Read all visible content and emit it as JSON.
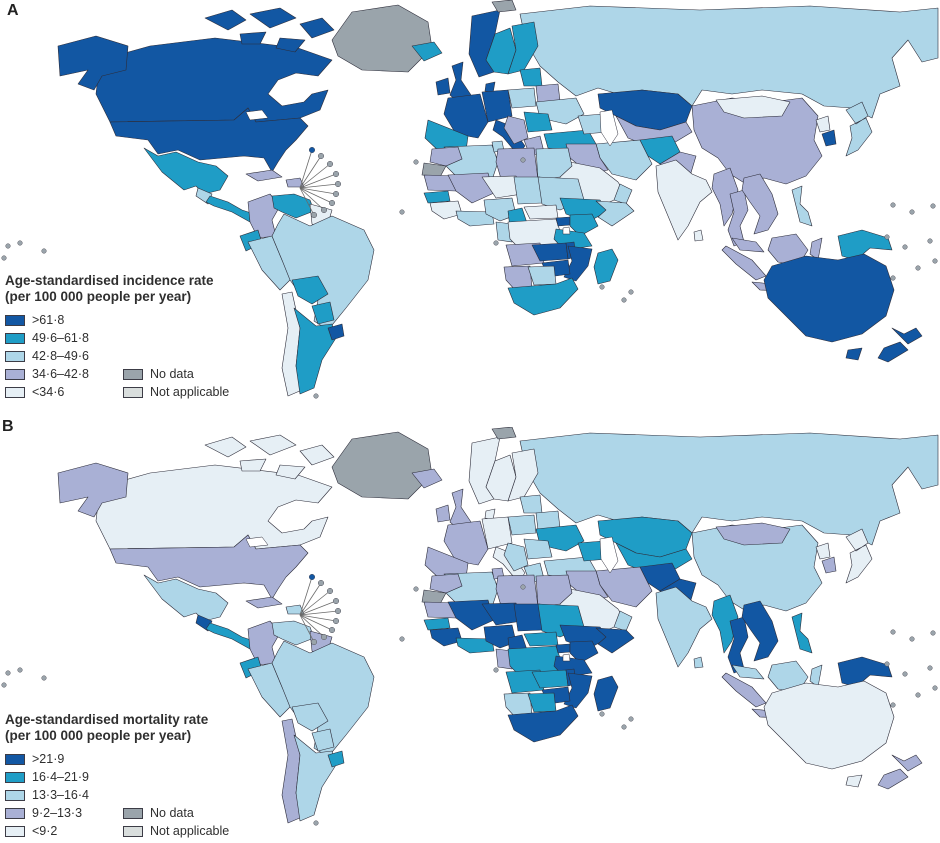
{
  "figure": {
    "panels": [
      {
        "label": "A",
        "map_name": "world-map-incidence",
        "legend": {
          "title_line1": "Age-standardised incidence rate",
          "title_line2": "(per 100 000 people per year)",
          "classes": [
            {
              "label": ">61·8",
              "key": "q5"
            },
            {
              "label": "49·6–61·8",
              "key": "q4"
            },
            {
              "label": "42·8–49·6",
              "key": "q3"
            },
            {
              "label": "34·6–42·8",
              "key": "q2"
            },
            {
              "label": "<34·6",
              "key": "q1"
            }
          ],
          "extra": [
            {
              "label": "No data",
              "key": "nodata"
            },
            {
              "label": "Not applicable",
              "key": "na"
            }
          ]
        },
        "regions": {
          "russia": "q3",
          "canada": "q5",
          "greenland": "nodata",
          "usa": "q5",
          "mexico": "q4",
          "guatemala": "q3",
          "central_america": "q4",
          "cuba": "q2",
          "hispaniola": "q2",
          "colombia": "q2",
          "venezuela": "q4",
          "guyanas": "q1",
          "ecuador": "q4",
          "peru": "q3",
          "brazil": "q3",
          "bolivia": "q4",
          "paraguay": "q4",
          "chile": "q1",
          "argentina": "q4",
          "uruguay": "q5",
          "iceland": "q4",
          "ireland": "q5",
          "uk": "q5",
          "norway": "q5",
          "sweden": "q4",
          "finland": "q4",
          "svalbard": "nodata",
          "denmark": "q5",
          "germany": "q5",
          "france": "q5",
          "iberia": "q4",
          "italy": "q5",
          "poland": "q3",
          "baltics": "q4",
          "belarus": "q2",
          "ukraine": "q3",
          "romania": "q4",
          "balkans": "q2",
          "greece": "q2",
          "turkey": "q4",
          "caucasus": "q3",
          "kazakhstan": "q5",
          "central_asia": "q2",
          "iran": "q3",
          "afghanistan": "q4",
          "pakistan": "q2",
          "iraq_syria": "q2",
          "saudi": "q1",
          "yemen": "q3",
          "oman": "q3",
          "india": "q1",
          "sri_lanka": "q1",
          "myanmar": "q2",
          "thailand": "q2",
          "indochina": "q2",
          "malaysia": "q2",
          "sumatra": "q2",
          "java": "q2",
          "borneo": "q2",
          "sulawesi": "q2",
          "new_guinea": "q4",
          "philippines": "q3",
          "japan": "q3",
          "north_korea": "q1",
          "south_korea": "q5",
          "mongolia": "q1",
          "china": "q2",
          "australia": "q5",
          "tasmania": "q5",
          "new_zealand": "q5",
          "morocco": "q2",
          "western_sahara": "nodata",
          "algeria": "q3",
          "tunisia": "q3",
          "libya": "q2",
          "egypt": "q3",
          "mauritania": "q2",
          "mali": "q2",
          "niger": "q1",
          "chad": "q3",
          "sudan": "q3",
          "ethiopia": "q4",
          "somalia": "q3",
          "senegal": "q4",
          "guinea": "q1",
          "ivory_ghana": "q3",
          "nigeria": "q3",
          "cameroon": "q4",
          "car": "q1",
          "gabon_congo": "q3",
          "drc": "q1",
          "uganda": "q5",
          "kenya": "q4",
          "tanzania": "q4",
          "angola": "q2",
          "zambia": "q5",
          "malawi": "q5",
          "mozambique": "q5",
          "zimbabwe": "q5",
          "namibia": "q2",
          "botswana": "q3",
          "south_africa": "q4",
          "madagascar": "q4"
        }
      },
      {
        "label": "B",
        "map_name": "world-map-mortality",
        "legend": {
          "title_line1": "Age-standardised mortality rate",
          "title_line2": "(per 100 000 people per year)",
          "classes": [
            {
              "label": ">21·9",
              "key": "q5"
            },
            {
              "label": "16·4–21·9",
              "key": "q4"
            },
            {
              "label": "13·3–16·4",
              "key": "q3"
            },
            {
              "label": "9·2–13·3",
              "key": "q2"
            },
            {
              "label": "<9·2",
              "key": "q1"
            }
          ],
          "extra": [
            {
              "label": "No data",
              "key": "nodata"
            },
            {
              "label": "Not applicable",
              "key": "na"
            }
          ]
        },
        "regions": {
          "russia": "q3",
          "canada": "q1",
          "greenland": "nodata",
          "usa": "q2",
          "mexico": "q3",
          "guatemala": "q5",
          "central_america": "q4",
          "cuba": "q2",
          "hispaniola": "q3",
          "colombia": "q2",
          "venezuela": "q3",
          "guyanas": "q2",
          "ecuador": "q4",
          "peru": "q3",
          "brazil": "q3",
          "bolivia": "q3",
          "paraguay": "q3",
          "chile": "q2",
          "argentina": "q3",
          "uruguay": "q4",
          "iceland": "q2",
          "ireland": "q2",
          "uk": "q2",
          "norway": "q1",
          "sweden": "q1",
          "finland": "q1",
          "svalbard": "nodata",
          "denmark": "q1",
          "germany": "q1",
          "france": "q2",
          "iberia": "q2",
          "italy": "q1",
          "poland": "q3",
          "baltics": "q3",
          "belarus": "q3",
          "ukraine": "q4",
          "romania": "q3",
          "balkans": "q3",
          "greece": "q3",
          "turkey": "q3",
          "caucasus": "q4",
          "kazakhstan": "q4",
          "central_asia": "q4",
          "iran": "q2",
          "afghanistan": "q5",
          "pakistan": "q5",
          "iraq_syria": "q2",
          "saudi": "q1",
          "yemen": "q4",
          "oman": "q3",
          "india": "q3",
          "sri_lanka": "q3",
          "myanmar": "q4",
          "thailand": "q5",
          "indochina": "q5",
          "malaysia": "q3",
          "sumatra": "q2",
          "java": "q2",
          "borneo": "q3",
          "sulawesi": "q3",
          "new_guinea": "q5",
          "philippines": "q4",
          "japan": "q1",
          "north_korea": "q1",
          "south_korea": "q2",
          "mongolia": "q2",
          "china": "q3",
          "australia": "q1",
          "tasmania": "q1",
          "new_zealand": "q2",
          "morocco": "q2",
          "western_sahara": "nodata",
          "algeria": "q3",
          "tunisia": "q2",
          "libya": "q2",
          "egypt": "q2",
          "mauritania": "q2",
          "mali": "q5",
          "niger": "q5",
          "chad": "q5",
          "sudan": "q4",
          "ethiopia": "q5",
          "somalia": "q5",
          "senegal": "q4",
          "guinea": "q5",
          "ivory_ghana": "q4",
          "nigeria": "q5",
          "cameroon": "q5",
          "car": "q4",
          "gabon_congo": "q2",
          "drc": "q4",
          "uganda": "q5",
          "kenya": "q5",
          "tanzania": "q5",
          "angola": "q4",
          "zambia": "q4",
          "malawi": "q5",
          "mozambique": "q5",
          "zimbabwe": "q5",
          "namibia": "q3",
          "botswana": "q4",
          "south_africa": "q5",
          "madagascar": "q5"
        }
      }
    ]
  },
  "palette": {
    "q5": "#1257a3",
    "q4": "#1f9dc6",
    "q3": "#aed6e8",
    "q2": "#a9b0d5",
    "q1": "#e6eff5",
    "nodata": "#9aa4ab",
    "na": "#d9dedd"
  },
  "colors": {
    "border": "#2d2d3a",
    "ocean": "#ffffff",
    "fan_line": "#6a6a6a",
    "island_dot": "#9aa4ab"
  }
}
